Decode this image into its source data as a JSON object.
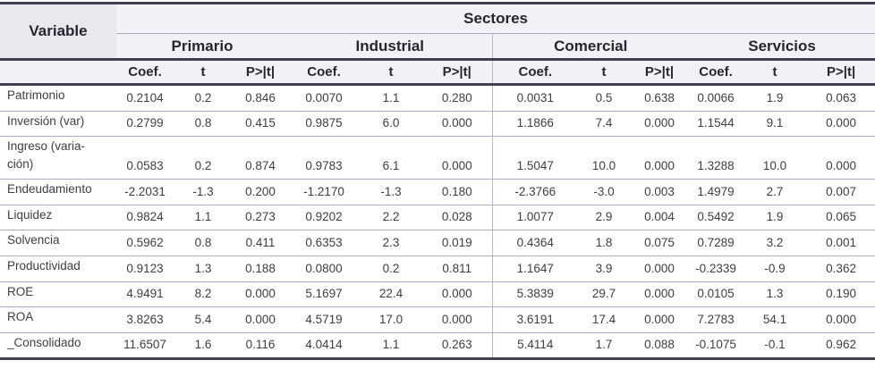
{
  "table": {
    "variable_header": "Variable",
    "sectores_header": "Sectores",
    "sectors": [
      "Primario",
      "Industrial",
      "Comercial",
      "Servicios"
    ],
    "stat_headers": [
      "Coef.",
      "t",
      "P>|t|"
    ],
    "rows": [
      {
        "variable": "Patrimonio",
        "values": [
          "0.2104",
          "0.2",
          "0.846",
          "0.0070",
          "1.1",
          "0.280",
          "0.0031",
          "0.5",
          "0.638",
          "0.0066",
          "1.9",
          "0.063"
        ]
      },
      {
        "variable": "Inversión (var)",
        "values": [
          "0.2799",
          "0.8",
          "0.415",
          "0.9875",
          "6.0",
          "0.000",
          "1.1866",
          "7.4",
          "0.000",
          "1.1544",
          "9.1",
          "0.000"
        ]
      },
      {
        "variable": "Ingreso (varia-\nción)",
        "values": [
          "0.0583",
          "0.2",
          "0.874",
          "0.9783",
          "6.1",
          "0.000",
          "1.5047",
          "10.0",
          "0.000",
          "1.3288",
          "10.0",
          "0.000"
        ]
      },
      {
        "variable": "Endeudamiento",
        "values": [
          "-2.2031",
          "-1.3",
          "0.200",
          "-1.2170",
          "-1.3",
          "0.180",
          "-2.3766",
          "-3.0",
          "0.003",
          "1.4979",
          "2.7",
          "0.007"
        ]
      },
      {
        "variable": "Liquidez",
        "values": [
          "0.9824",
          "1.1",
          "0.273",
          "0.9202",
          "2.2",
          "0.028",
          "1.0077",
          "2.9",
          "0.004",
          "0.5492",
          "1.9",
          "0.065"
        ]
      },
      {
        "variable": "Solvencia",
        "values": [
          "0.5962",
          "0.8",
          "0.411",
          "0.6353",
          "2.3",
          "0.019",
          "0.4364",
          "1.8",
          "0.075",
          "0.7289",
          "3.2",
          "0.001"
        ]
      },
      {
        "variable": "Productividad",
        "values": [
          "0.9123",
          "1.3",
          "0.188",
          "0.0800",
          "0.2",
          "0.811",
          "1.1647",
          "3.9",
          "0.000",
          "-0.2339",
          "-0.9",
          "0.362"
        ]
      },
      {
        "variable": "ROE",
        "values": [
          "4.9491",
          "8.2",
          "0.000",
          "5.1697",
          "22.4",
          "0.000",
          "5.3839",
          "29.7",
          "0.000",
          "0.0105",
          "1.3",
          "0.190"
        ]
      },
      {
        "variable": "ROA",
        "values": [
          "3.8263",
          "5.4",
          "0.000",
          "4.5719",
          "17.0",
          "0.000",
          "3.6191",
          "17.4",
          "0.000",
          "7.2783",
          "54.1",
          "0.000"
        ]
      },
      {
        "variable": "_Consolidado",
        "values": [
          "11.6507",
          "1.6",
          "0.116",
          "4.0414",
          "1.1",
          "0.263",
          "5.4114",
          "1.7",
          "0.088",
          "-0.1075",
          "-0.1",
          "0.962"
        ]
      }
    ],
    "colors": {
      "dark_rule": "#3f3f52",
      "light_rule": "#ababc8",
      "header_bg": "#f2f2f6",
      "variable_cell_bg": "#e9e9ed"
    }
  }
}
